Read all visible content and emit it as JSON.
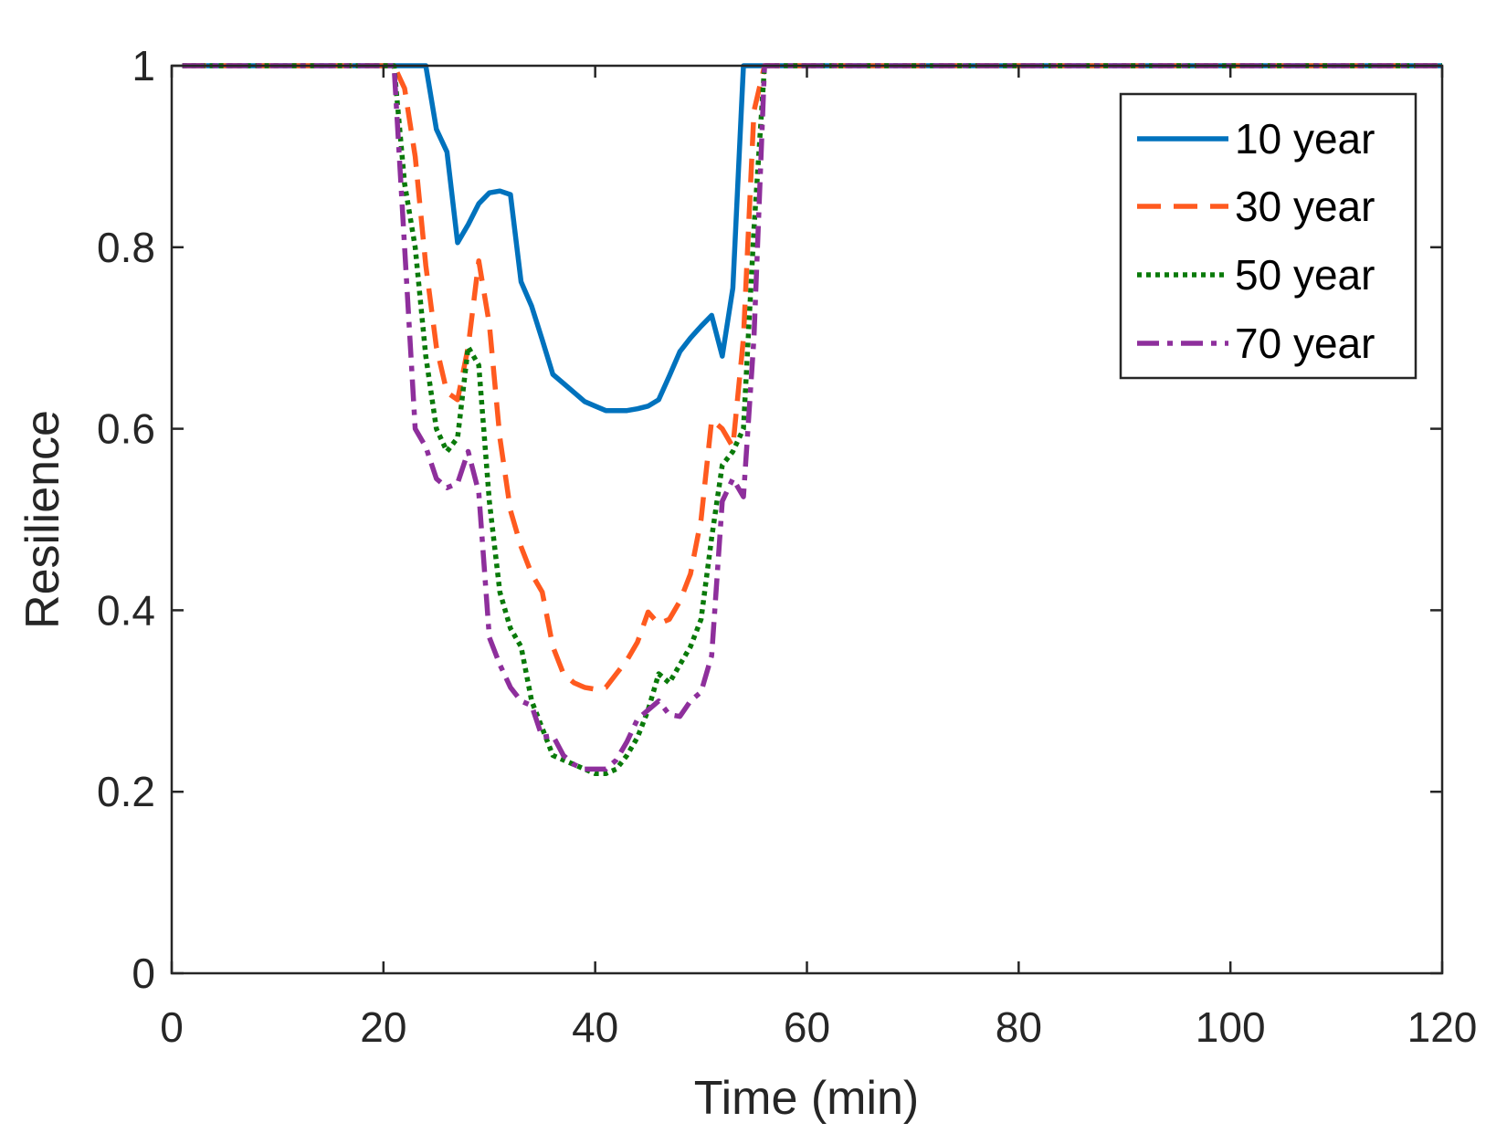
{
  "chart_data": {
    "type": "line",
    "title": "",
    "xlabel": "Time (min)",
    "ylabel": "Resilience",
    "xlim": [
      0,
      120
    ],
    "ylim": [
      0,
      1
    ],
    "xticks": [
      0,
      20,
      40,
      60,
      80,
      100,
      120
    ],
    "yticks": [
      0,
      0.2,
      0.4,
      0.6,
      0.8,
      1
    ],
    "xtick_labels": [
      "0",
      "20",
      "40",
      "60",
      "80",
      "100",
      "120"
    ],
    "ytick_labels": [
      "0",
      "0.2",
      "0.4",
      "0.6",
      "0.8",
      "1"
    ],
    "grid": false,
    "legend_position": "top-right",
    "series": [
      {
        "name": "10 year",
        "color": "#0072BD",
        "dash": "solid",
        "x": [
          1,
          21,
          22,
          23,
          24,
          25,
          26,
          27,
          28,
          29,
          30,
          31,
          32,
          33,
          34,
          35,
          36,
          37,
          38,
          39,
          40,
          41,
          42,
          43,
          44,
          45,
          46,
          47,
          48,
          49,
          50,
          51,
          52,
          53,
          54,
          55,
          120
        ],
        "y": [
          1,
          1,
          1,
          1,
          1,
          0.93,
          0.905,
          0.805,
          0.825,
          0.848,
          0.86,
          0.862,
          0.858,
          0.762,
          0.735,
          0.698,
          0.66,
          0.65,
          0.64,
          0.63,
          0.625,
          0.62,
          0.62,
          0.62,
          0.622,
          0.625,
          0.632,
          0.658,
          0.685,
          0.7,
          0.713,
          0.725,
          0.68,
          0.755,
          1,
          1,
          1
        ]
      },
      {
        "name": "30 year",
        "color": "#FF5A1F",
        "dash": "dashed",
        "x": [
          1,
          21,
          22,
          23,
          24,
          25,
          26,
          27,
          28,
          29,
          30,
          31,
          32,
          33,
          34,
          35,
          36,
          37,
          38,
          39,
          40,
          41,
          42,
          43,
          44,
          45,
          46,
          47,
          48,
          49,
          50,
          51,
          52,
          53,
          54,
          55,
          56,
          120
        ],
        "y": [
          1,
          1,
          0.975,
          0.9,
          0.78,
          0.69,
          0.64,
          0.632,
          0.69,
          0.785,
          0.715,
          0.59,
          0.51,
          0.47,
          0.44,
          0.42,
          0.36,
          0.33,
          0.32,
          0.315,
          0.313,
          0.315,
          0.33,
          0.345,
          0.365,
          0.398,
          0.385,
          0.39,
          0.41,
          0.44,
          0.5,
          0.61,
          0.6,
          0.58,
          0.7,
          0.95,
          1,
          1
        ]
      },
      {
        "name": "50 year",
        "color": "#0A7A0A",
        "dash": "dotted",
        "x": [
          1,
          21,
          22,
          23,
          24,
          25,
          26,
          27,
          28,
          29,
          30,
          31,
          32,
          33,
          34,
          35,
          36,
          37,
          38,
          39,
          40,
          41,
          42,
          43,
          44,
          45,
          46,
          47,
          48,
          49,
          50,
          51,
          52,
          53,
          54,
          55,
          56,
          120
        ],
        "y": [
          1,
          1,
          0.87,
          0.8,
          0.68,
          0.6,
          0.575,
          0.59,
          0.69,
          0.67,
          0.52,
          0.42,
          0.38,
          0.36,
          0.3,
          0.27,
          0.24,
          0.235,
          0.23,
          0.225,
          0.22,
          0.22,
          0.225,
          0.24,
          0.26,
          0.29,
          0.33,
          0.32,
          0.34,
          0.36,
          0.39,
          0.48,
          0.56,
          0.575,
          0.6,
          0.82,
          1,
          1
        ]
      },
      {
        "name": "70 year",
        "color": "#8E2F9C",
        "dash": "dashdot",
        "x": [
          1,
          21,
          22,
          23,
          24,
          25,
          26,
          27,
          28,
          29,
          30,
          31,
          32,
          33,
          34,
          35,
          36,
          37,
          38,
          39,
          40,
          41,
          42,
          43,
          44,
          45,
          46,
          47,
          48,
          49,
          50,
          51,
          52,
          53,
          54,
          55,
          56,
          120
        ],
        "y": [
          1,
          1,
          0.8,
          0.6,
          0.58,
          0.545,
          0.535,
          0.54,
          0.575,
          0.53,
          0.37,
          0.34,
          0.315,
          0.3,
          0.295,
          0.26,
          0.262,
          0.24,
          0.23,
          0.225,
          0.225,
          0.225,
          0.235,
          0.255,
          0.28,
          0.29,
          0.3,
          0.285,
          0.283,
          0.3,
          0.31,
          0.35,
          0.52,
          0.545,
          0.525,
          0.7,
          1,
          1
        ]
      }
    ]
  }
}
